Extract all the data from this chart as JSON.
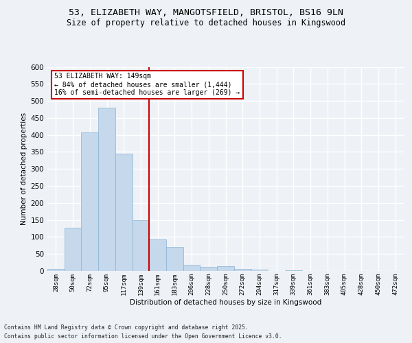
{
  "title_line1": "53, ELIZABETH WAY, MANGOTSFIELD, BRISTOL, BS16 9LN",
  "title_line2": "Size of property relative to detached houses in Kingswood",
  "xlabel": "Distribution of detached houses by size in Kingswood",
  "ylabel": "Number of detached properties",
  "footer_line1": "Contains HM Land Registry data © Crown copyright and database right 2025.",
  "footer_line2": "Contains public sector information licensed under the Open Government Licence v3.0.",
  "bar_labels": [
    "28sqm",
    "50sqm",
    "72sqm",
    "95sqm",
    "117sqm",
    "139sqm",
    "161sqm",
    "183sqm",
    "206sqm",
    "228sqm",
    "250sqm",
    "272sqm",
    "294sqm",
    "317sqm",
    "339sqm",
    "361sqm",
    "383sqm",
    "405sqm",
    "428sqm",
    "450sqm",
    "472sqm"
  ],
  "bar_values": [
    7,
    128,
    408,
    481,
    344,
    150,
    92,
    70,
    18,
    13,
    15,
    6,
    4,
    0,
    2,
    0,
    0,
    0,
    0,
    0,
    0
  ],
  "bar_color": "#c5d8ec",
  "bar_edgecolor": "#8ab4d4",
  "annotation_text": "53 ELIZABETH WAY: 149sqm\n← 84% of detached houses are smaller (1,444)\n16% of semi-detached houses are larger (269) →",
  "annotation_box_color": "#ffffff",
  "annotation_box_edgecolor": "#cc0000",
  "vline_color": "#cc0000",
  "ylim": [
    0,
    600
  ],
  "yticks": [
    0,
    50,
    100,
    150,
    200,
    250,
    300,
    350,
    400,
    450,
    500,
    550,
    600
  ],
  "background_color": "#eef2f7",
  "axes_background": "#eef2f7",
  "grid_color": "#ffffff",
  "title_fontsize": 9.5,
  "subtitle_fontsize": 8.5,
  "vline_x_index": 5.5
}
